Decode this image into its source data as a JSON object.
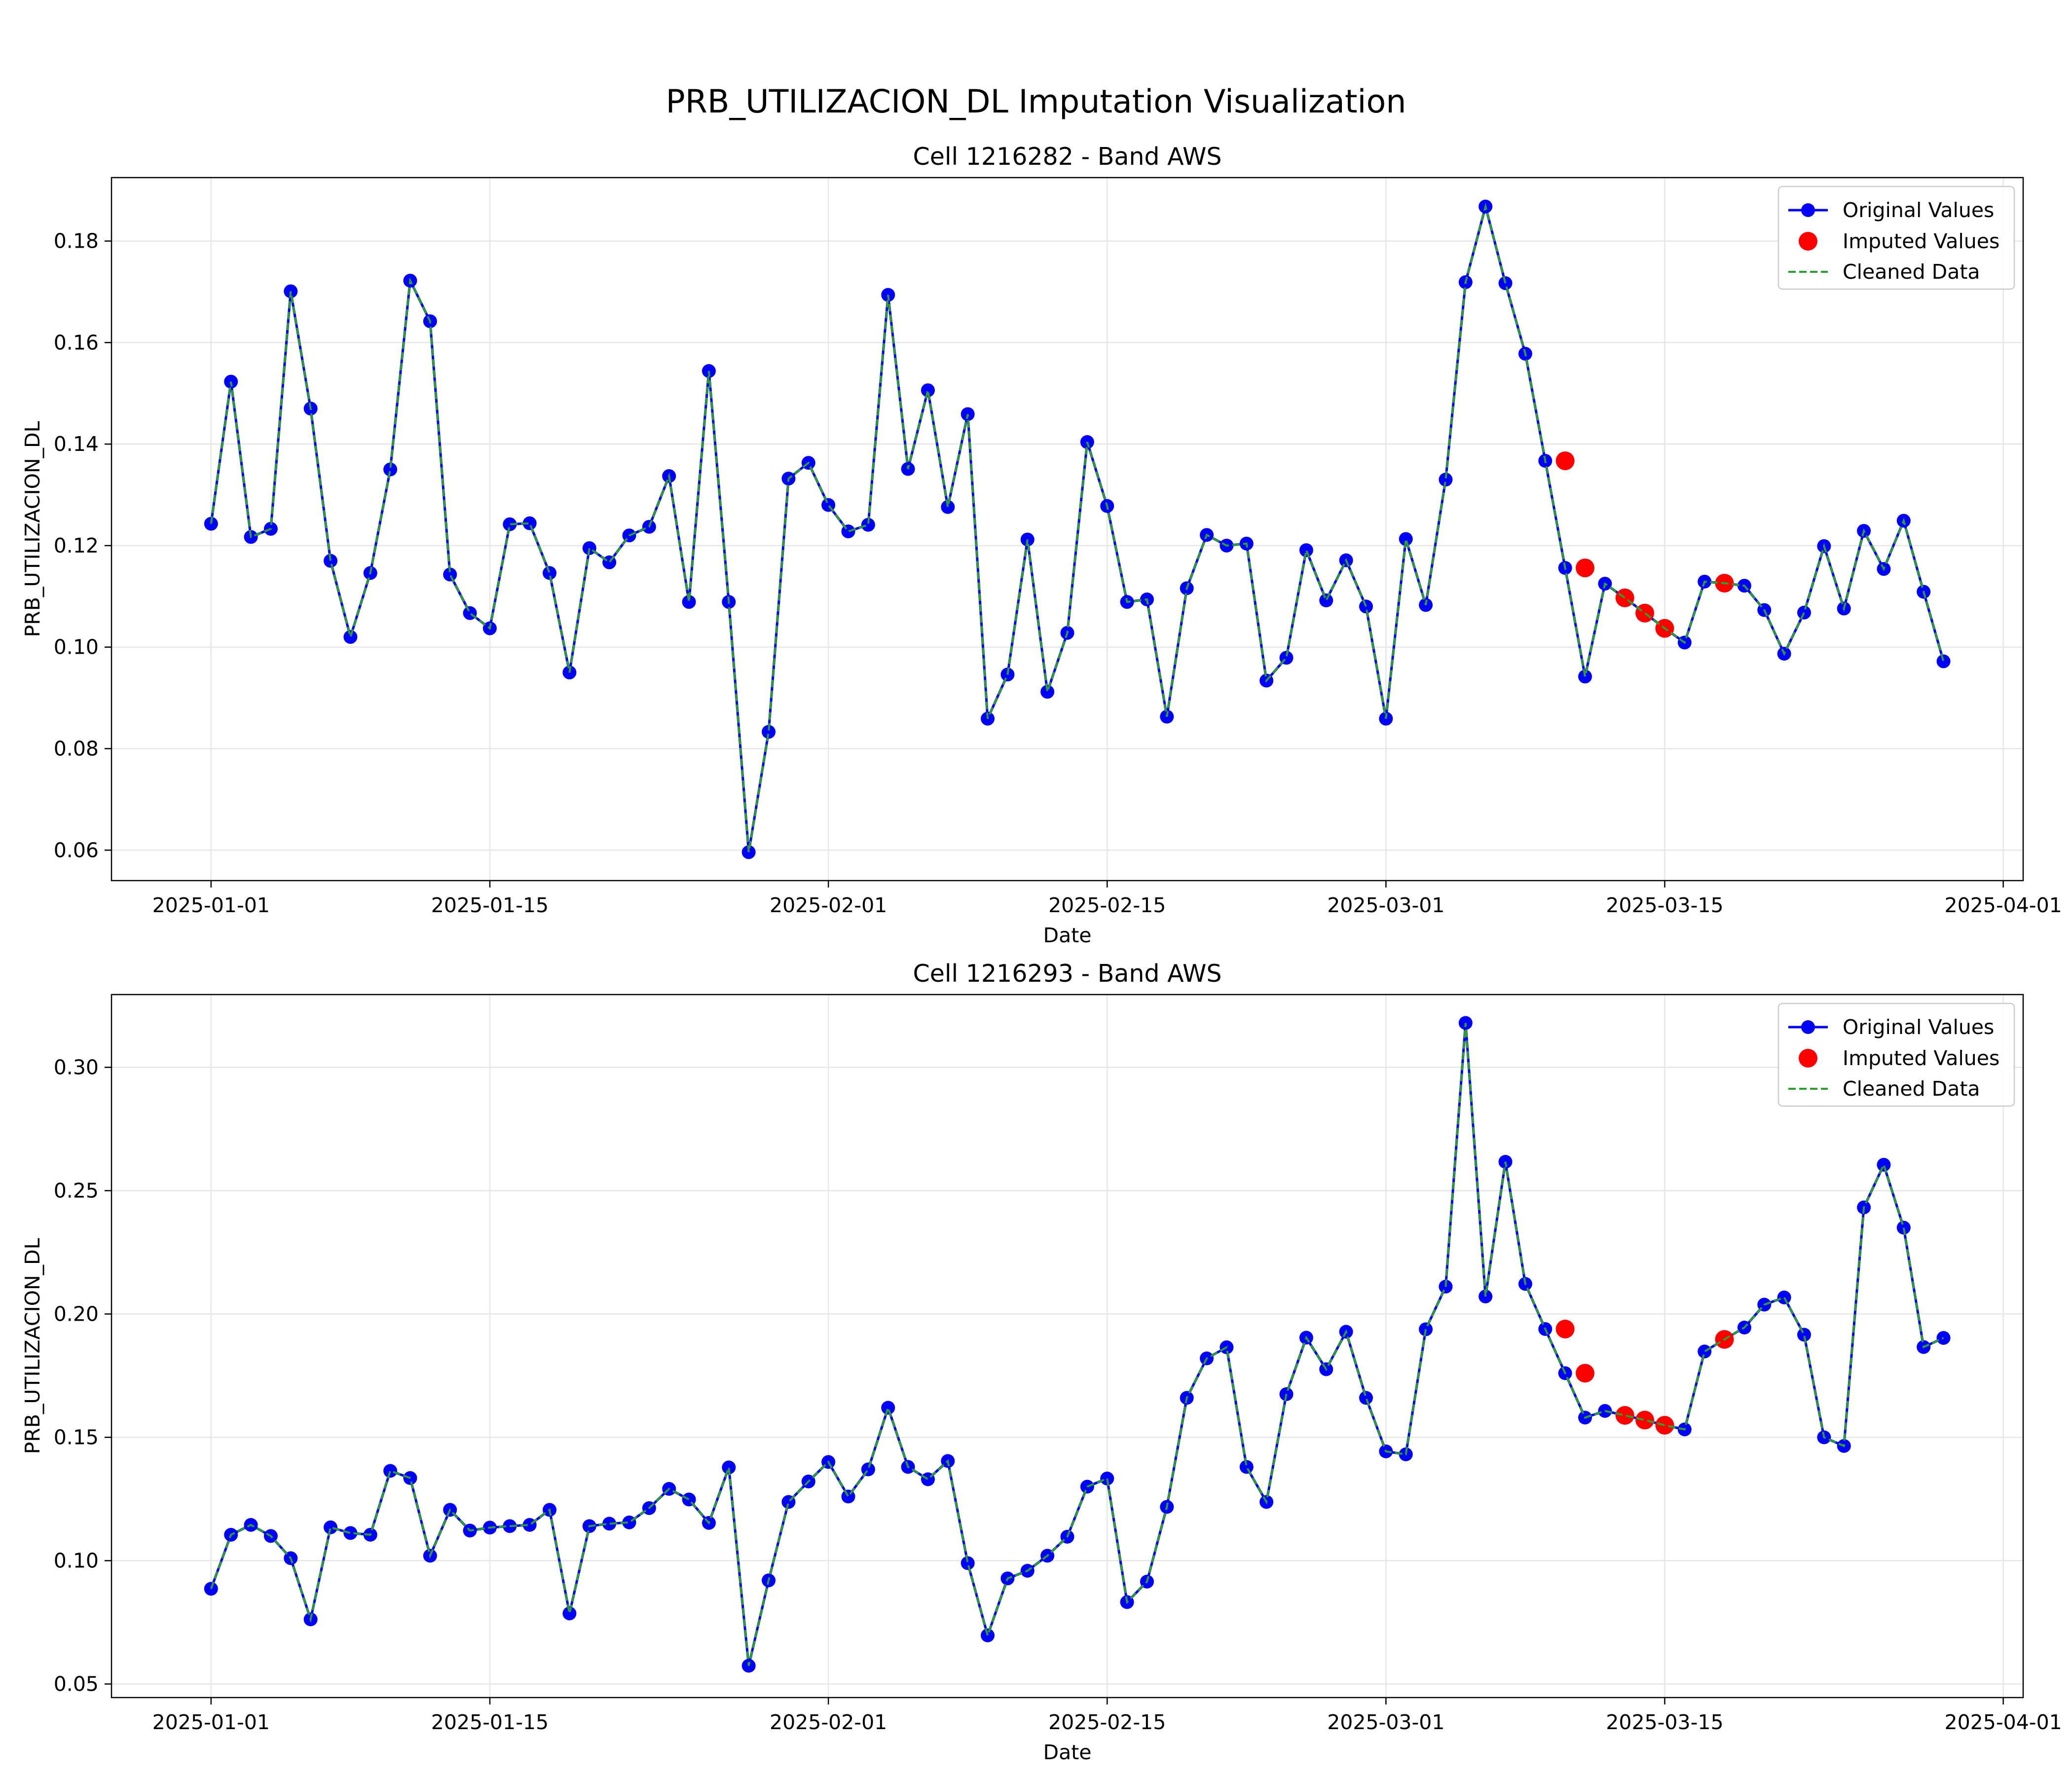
{
  "figure": {
    "title": "PRB_UTILIZACION_DL Imputation Visualization"
  },
  "legend": {
    "original_label": "Original Values",
    "imputed_label": "Imputed Values",
    "cleaned_label": "Cleaned Data"
  },
  "colors": {
    "original": "#0000ff",
    "imputed": "#ff0000",
    "cleaned": "#2ca02c",
    "grid": "#e6e6e6"
  },
  "chart_data": [
    {
      "type": "line",
      "title": "Cell 1216282 - Band AWS",
      "xlabel": "Date",
      "ylabel": "PRB_UTILIZACION_DL",
      "x_start": "2025-01-01",
      "x_step_days": 1,
      "xlim": [
        "2024-12-27",
        "2025-04-02"
      ],
      "ylim": [
        0.054,
        0.1925
      ],
      "x_ticks": [
        "2025-01-01",
        "2025-01-15",
        "2025-02-01",
        "2025-02-15",
        "2025-03-01",
        "2025-03-15",
        "2025-04-01"
      ],
      "y_ticks": [
        0.06,
        0.08,
        0.1,
        0.12,
        0.14,
        0.16,
        0.18
      ],
      "grid": true,
      "legend_position": "top-right",
      "series": [
        {
          "name": "Original Values",
          "values": [
            0.1243,
            0.1523,
            0.1217,
            0.1233,
            0.1701,
            0.147,
            0.117,
            0.102,
            0.1146,
            0.135,
            0.1722,
            0.1642,
            0.1143,
            0.1067,
            0.1037,
            0.1242,
            0.1244,
            0.1146,
            0.095,
            0.1195,
            0.1167,
            0.122,
            0.1237,
            0.1337,
            0.1089,
            0.1544,
            0.1089,
            0.0596,
            0.0833,
            0.1332,
            0.1363,
            0.128,
            0.1228,
            0.1241,
            0.1694,
            0.1351,
            0.1506,
            0.1276,
            0.1459,
            0.0859,
            0.0946,
            0.1212,
            0.0912,
            0.1028,
            0.1404,
            0.1278,
            0.1089,
            0.1094,
            0.0863,
            0.1116,
            0.1221,
            0.12,
            0.1204,
            0.0934,
            0.0979,
            0.1191,
            0.1092,
            0.1171,
            0.108,
            0.0859,
            0.1213,
            0.1083,
            0.133,
            0.1719,
            0.1868,
            0.1717,
            0.1578,
            0.1367,
            0.1156,
            0.0942,
            0.1125,
            0.1097,
            0.1067,
            0.1037,
            0.1009,
            0.1129,
            0.1126,
            0.1121,
            0.1073,
            0.0987,
            0.1068,
            0.1199,
            0.1076,
            0.1229,
            0.1154,
            0.1249,
            0.1109,
            0.0972
          ]
        },
        {
          "name": "Imputed Values",
          "points": [
            {
              "x": "2025-03-10",
              "y": 0.1367
            },
            {
              "x": "2025-03-11",
              "y": 0.1156
            },
            {
              "x": "2025-03-13",
              "y": 0.1097
            },
            {
              "x": "2025-03-14",
              "y": 0.1067
            },
            {
              "x": "2025-03-15",
              "y": 0.1037
            },
            {
              "x": "2025-03-18",
              "y": 0.1126
            }
          ]
        },
        {
          "name": "Cleaned Data",
          "same_as": "Original Values"
        }
      ]
    },
    {
      "type": "line",
      "title": "Cell 1216293 - Band AWS",
      "xlabel": "Date",
      "ylabel": "PRB_UTILIZACION_DL",
      "x_start": "2025-01-01",
      "x_step_days": 1,
      "xlim": [
        "2024-12-27",
        "2025-04-02"
      ],
      "ylim": [
        0.0445,
        0.3295
      ],
      "x_ticks": [
        "2025-01-01",
        "2025-01-15",
        "2025-02-01",
        "2025-02-15",
        "2025-03-01",
        "2025-03-15",
        "2025-04-01"
      ],
      "y_ticks": [
        0.05,
        0.1,
        0.15,
        0.2,
        0.25,
        0.3
      ],
      "grid": true,
      "legend_position": "top-right",
      "series": [
        {
          "name": "Original Values",
          "values": [
            0.0886,
            0.1105,
            0.1145,
            0.11,
            0.101,
            0.0762,
            0.1135,
            0.1112,
            0.1105,
            0.1364,
            0.1335,
            0.102,
            0.1206,
            0.1122,
            0.1134,
            0.114,
            0.1145,
            0.1206,
            0.0786,
            0.114,
            0.115,
            0.1155,
            0.1213,
            0.1291,
            0.1248,
            0.1153,
            0.1378,
            0.0574,
            0.092,
            0.1238,
            0.1321,
            0.14,
            0.126,
            0.137,
            0.162,
            0.138,
            0.133,
            0.1404,
            0.099,
            0.0697,
            0.0928,
            0.0959,
            0.102,
            0.1097,
            0.13,
            0.1333,
            0.0832,
            0.0915,
            0.1218,
            0.166,
            0.182,
            0.1865,
            0.138,
            0.1238,
            0.1675,
            0.1904,
            0.1776,
            0.1928,
            0.166,
            0.1443,
            0.1431,
            0.1938,
            0.2111,
            0.318,
            0.2071,
            0.2617,
            0.2122,
            0.1939,
            0.176,
            0.158,
            0.1607,
            0.1589,
            0.157,
            0.1549,
            0.1532,
            0.1848,
            0.1897,
            0.1945,
            0.2038,
            0.2067,
            0.1916,
            0.15,
            0.1465,
            0.2432,
            0.2605,
            0.235,
            0.1866,
            0.1903
          ]
        },
        {
          "name": "Imputed Values",
          "points": [
            {
              "x": "2025-03-10",
              "y": 0.1939
            },
            {
              "x": "2025-03-11",
              "y": 0.176
            },
            {
              "x": "2025-03-13",
              "y": 0.1589
            },
            {
              "x": "2025-03-14",
              "y": 0.157
            },
            {
              "x": "2025-03-15",
              "y": 0.1549
            },
            {
              "x": "2025-03-18",
              "y": 0.1897
            }
          ]
        },
        {
          "name": "Cleaned Data",
          "same_as": "Original Values"
        }
      ]
    }
  ]
}
